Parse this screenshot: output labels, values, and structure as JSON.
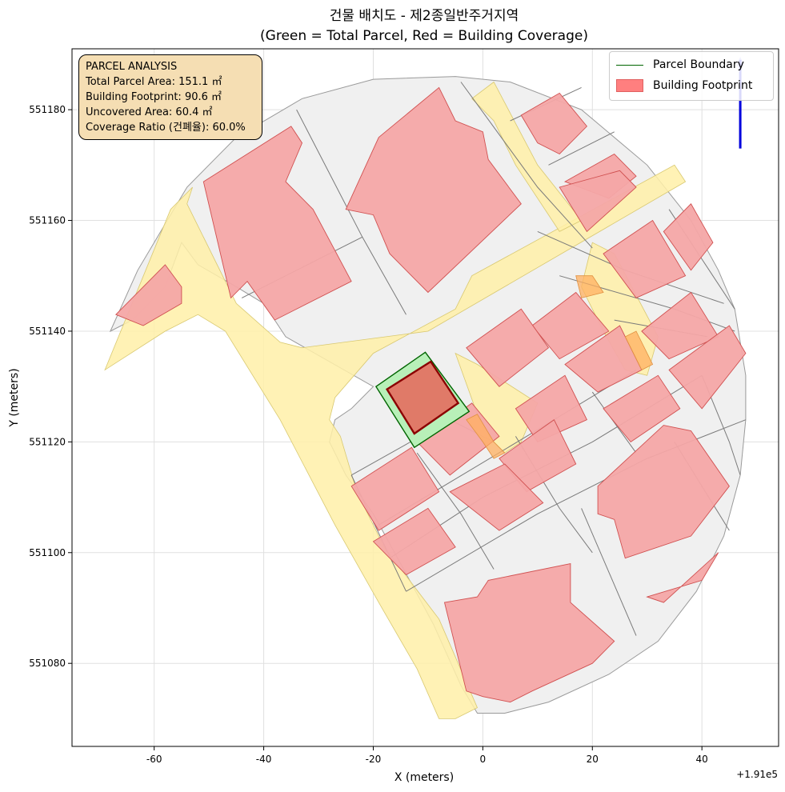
{
  "title": {
    "line1": "건물 배치도 - 제2종일반주거지역",
    "line2": "(Green = Total Parcel, Red = Building Coverage)"
  },
  "axes": {
    "xlabel": "X (meters)",
    "ylabel": "Y (meters)",
    "offset": "+1.91e5",
    "xlim": [
      -75,
      54
    ],
    "ylim": [
      551065,
      551191
    ],
    "xticks": [
      -60,
      -40,
      -20,
      0,
      20,
      40
    ],
    "xtick_labels": [
      "-60",
      "-40",
      "-20",
      "0",
      "20",
      "40"
    ],
    "yticks": [
      551080,
      551100,
      551120,
      551140,
      551160,
      551180
    ],
    "ytick_labels": [
      "551080",
      "551100",
      "551120",
      "551140",
      "551160",
      "551180"
    ],
    "grid": true
  },
  "info_box": {
    "title": "PARCEL ANALYSIS",
    "total_area": "Total Parcel Area: 151.1 ㎡",
    "footprint": "Building Footprint: 90.6 ㎡",
    "uncovered": "Uncovered Area: 60.4 ㎡",
    "coverage": "Coverage Ratio (건폐율): 60.0%"
  },
  "legend": {
    "placement": "top-right",
    "parcel_label": "Parcel Boundary",
    "building_label": "Building Footprint"
  },
  "colors": {
    "area_fill": "#f0f0f0",
    "road_fill": "#fff0a8",
    "building_fill": "#f4a6a6",
    "building_edge": "#d05050",
    "parcel_fill": "#b8f0b8",
    "parcel_edge": "#006400",
    "target_building_fill": "#e07a68",
    "target_building_edge": "#8b0000",
    "highlight_fill": "#ffb060",
    "north_arrow": "#0000dd"
  },
  "chart_data": {
    "type": "map",
    "coordinate_system": {
      "x_offset": 191000
    },
    "target_parcel": [
      [
        -19.5,
        551130
      ],
      [
        -10.5,
        551136.2
      ],
      [
        -2.5,
        551125.5
      ],
      [
        -12.5,
        551119
      ]
    ],
    "target_building": [
      [
        -17.5,
        551129.5
      ],
      [
        -9.5,
        551134.5
      ],
      [
        -4.5,
        551127
      ],
      [
        -12.5,
        551121.5
      ]
    ],
    "north_arrow": {
      "x": 47,
      "y_start": 551173,
      "y_end": 551189
    },
    "area_outline": [
      [
        -68,
        551140
      ],
      [
        -63,
        551151
      ],
      [
        -54,
        551166
      ],
      [
        -45,
        551175
      ],
      [
        -33,
        551182
      ],
      [
        -20,
        551185.5
      ],
      [
        -5,
        551186
      ],
      [
        5,
        551185
      ],
      [
        18,
        551180
      ],
      [
        30,
        551170
      ],
      [
        38,
        551160
      ],
      [
        43,
        551151
      ],
      [
        46,
        551144
      ],
      [
        47,
        551138
      ],
      [
        48,
        551132
      ],
      [
        48,
        551124
      ],
      [
        47,
        551114
      ],
      [
        44,
        551103
      ],
      [
        39,
        551093
      ],
      [
        32,
        551084
      ],
      [
        23,
        551078
      ],
      [
        12,
        551073
      ],
      [
        4,
        551071
      ],
      [
        -1,
        551071
      ],
      [
        -4,
        551076
      ],
      [
        -9,
        551087
      ],
      [
        -15,
        551098
      ],
      [
        -20,
        551107
      ],
      [
        -25,
        551114
      ],
      [
        -28,
        551120
      ],
      [
        -27,
        551124
      ],
      [
        -24,
        551126
      ],
      [
        -20,
        551130
      ],
      [
        -36,
        551139
      ],
      [
        -40,
        551145
      ],
      [
        -45,
        551148
      ],
      [
        -52,
        551152
      ],
      [
        -55,
        551156
      ],
      [
        -58,
        551148
      ],
      [
        -64,
        551142
      ],
      [
        -68,
        551140
      ]
    ],
    "roads": [
      [
        [
          -69,
          551133
        ],
        [
          -57,
          551162
        ],
        [
          -53,
          551166
        ],
        [
          -54,
          551163
        ],
        [
          -45,
          551145
        ],
        [
          -37,
          551138
        ],
        [
          -33,
          551137
        ],
        [
          -10,
          551140
        ],
        [
          37,
          551167
        ],
        [
          35,
          551170
        ],
        [
          -2,
          551150
        ],
        [
          -5,
          551144
        ],
        [
          -20,
          551136
        ],
        [
          -27,
          551128
        ],
        [
          -28,
          551124
        ],
        [
          -26,
          551121
        ],
        [
          -23,
          551111
        ],
        [
          -18,
          551101
        ],
        [
          -8,
          551088
        ],
        [
          -1,
          551072
        ],
        [
          -5,
          551070
        ],
        [
          -8,
          551070
        ],
        [
          -12,
          551079
        ],
        [
          -19,
          551091
        ],
        [
          -27,
          551105
        ],
        [
          -37,
          551124
        ],
        [
          -47,
          551140
        ],
        [
          -52,
          551143
        ],
        [
          -58,
          551140
        ],
        [
          -69,
          551133
        ]
      ],
      [
        [
          -2,
          551182
        ],
        [
          2,
          551185
        ],
        [
          10,
          551170
        ],
        [
          18,
          551160
        ],
        [
          14,
          551158
        ],
        [
          6,
          551170
        ],
        [
          2,
          551178
        ]
      ],
      [
        [
          -5,
          551136
        ],
        [
          -1,
          551134
        ],
        [
          10,
          551127
        ],
        [
          7,
          551120
        ],
        [
          4,
          551118
        ],
        [
          2,
          551120
        ],
        [
          -1,
          551125
        ]
      ],
      [
        [
          20,
          551156
        ],
        [
          24,
          551154
        ],
        [
          32,
          551139
        ],
        [
          30,
          551132
        ],
        [
          26,
          551133
        ],
        [
          22,
          551140
        ],
        [
          18,
          551148
        ]
      ]
    ],
    "parcel_lines": [
      [
        [
          -34,
          551180
        ],
        [
          -22,
          551157
        ],
        [
          -14,
          551143
        ]
      ],
      [
        [
          -22,
          551157
        ],
        [
          -44,
          551146
        ]
      ],
      [
        [
          -4,
          551185
        ],
        [
          10,
          551166
        ],
        [
          20,
          551155
        ]
      ],
      [
        [
          5,
          551178
        ],
        [
          18,
          551184
        ]
      ],
      [
        [
          12,
          551170
        ],
        [
          24,
          551176
        ]
      ],
      [
        [
          -24,
          551114
        ],
        [
          -6,
          551124
        ],
        [
          2,
          551120
        ]
      ],
      [
        [
          -24,
          551114
        ],
        [
          -14,
          551093
        ]
      ],
      [
        [
          -19,
          551105
        ],
        [
          8,
          551121
        ],
        [
          28,
          551133
        ]
      ],
      [
        [
          -17,
          551099
        ],
        [
          0,
          551110
        ],
        [
          20,
          551120
        ],
        [
          40,
          551132
        ]
      ],
      [
        [
          -14,
          551093
        ],
        [
          10,
          551107
        ],
        [
          30,
          551117
        ],
        [
          48,
          551124
        ]
      ],
      [
        [
          -12,
          551118
        ],
        [
          -4,
          551107
        ],
        [
          2,
          551097
        ]
      ],
      [
        [
          6,
          551121
        ],
        [
          14,
          551108
        ],
        [
          20,
          551100
        ]
      ],
      [
        [
          20,
          551129
        ],
        [
          28,
          551118
        ]
      ],
      [
        [
          40,
          551132
        ],
        [
          45,
          551120
        ],
        [
          47,
          551114
        ]
      ],
      [
        [
          18,
          551108
        ],
        [
          28,
          551085
        ]
      ],
      [
        [
          35,
          551120
        ],
        [
          45,
          551104
        ]
      ],
      [
        [
          10,
          551158
        ],
        [
          26,
          551151
        ],
        [
          44,
          551145
        ]
      ],
      [
        [
          14,
          551150
        ],
        [
          35,
          551144
        ],
        [
          46,
          551140
        ]
      ],
      [
        [
          24,
          551142
        ],
        [
          41,
          551139
        ]
      ],
      [
        [
          34,
          551162
        ],
        [
          40,
          551153
        ],
        [
          46,
          551144
        ]
      ]
    ],
    "buildings": [
      [
        [
          -51,
          551167
        ],
        [
          -35,
          551177
        ],
        [
          -33,
          551174
        ],
        [
          -36,
          551167
        ],
        [
          -31,
          551162
        ],
        [
          -24,
          551149
        ],
        [
          -38,
          551142
        ],
        [
          -43,
          551149
        ],
        [
          -46,
          551146
        ]
      ],
      [
        [
          -67,
          551143
        ],
        [
          -58,
          551152
        ],
        [
          -55,
          551148
        ],
        [
          -55,
          551145
        ],
        [
          -62,
          551141
        ]
      ],
      [
        [
          -19,
          551175
        ],
        [
          -8,
          551184
        ],
        [
          -5,
          551178
        ],
        [
          0,
          551176
        ],
        [
          1,
          551171
        ],
        [
          7,
          551163
        ],
        [
          -10,
          551147
        ],
        [
          -12,
          551149
        ],
        [
          -17,
          551154
        ],
        [
          -20,
          551161
        ],
        [
          -25,
          551162
        ]
      ],
      [
        [
          7,
          551179
        ],
        [
          14,
          551183
        ],
        [
          19,
          551177
        ],
        [
          14,
          551172
        ],
        [
          10,
          551174
        ]
      ],
      [
        [
          15,
          551167
        ],
        [
          24,
          551172
        ],
        [
          28,
          551168
        ],
        [
          23,
          551164
        ]
      ],
      [
        [
          14,
          551166
        ],
        [
          19,
          551158
        ],
        [
          28,
          551166
        ],
        [
          25,
          551169
        ]
      ],
      [
        [
          22,
          551154
        ],
        [
          31,
          551160
        ],
        [
          37,
          551150
        ],
        [
          28,
          551146
        ]
      ],
      [
        [
          33,
          551158
        ],
        [
          38,
          551163
        ],
        [
          42,
          551156
        ],
        [
          38,
          551151
        ]
      ],
      [
        [
          9,
          551141
        ],
        [
          17,
          551147
        ],
        [
          23,
          551140
        ],
        [
          14,
          551135
        ]
      ],
      [
        [
          -3,
          551137
        ],
        [
          7,
          551144
        ],
        [
          12,
          551137
        ],
        [
          3,
          551130
        ]
      ],
      [
        [
          6,
          551126
        ],
        [
          15,
          551132
        ],
        [
          19,
          551124
        ],
        [
          10,
          551120
        ]
      ],
      [
        [
          15,
          551134
        ],
        [
          25,
          551141
        ],
        [
          29,
          551133
        ],
        [
          21,
          551129
        ]
      ],
      [
        [
          29,
          551140
        ],
        [
          38,
          551147
        ],
        [
          43,
          551139
        ],
        [
          34,
          551135
        ]
      ],
      [
        [
          34,
          551133
        ],
        [
          45,
          551141
        ],
        [
          48,
          551136
        ],
        [
          40,
          551126
        ]
      ],
      [
        [
          22,
          551126
        ],
        [
          32,
          551132
        ],
        [
          36,
          551126
        ],
        [
          27,
          551120
        ]
      ],
      [
        [
          -12,
          551120
        ],
        [
          -2,
          551127
        ],
        [
          3,
          551121
        ],
        [
          -6,
          551114
        ]
      ],
      [
        [
          -24,
          551112
        ],
        [
          -13,
          551119
        ],
        [
          -8,
          551111
        ],
        [
          -19,
          551104
        ]
      ],
      [
        [
          -20,
          551102
        ],
        [
          -10,
          551108
        ],
        [
          -5,
          551101
        ],
        [
          -14,
          551096
        ]
      ],
      [
        [
          3,
          551117
        ],
        [
          13,
          551124
        ],
        [
          17,
          551116
        ],
        [
          8,
          551111
        ]
      ],
      [
        [
          -6,
          551111
        ],
        [
          4,
          551116
        ],
        [
          11,
          551109
        ],
        [
          3,
          551104
        ]
      ],
      [
        [
          21,
          551112
        ],
        [
          33,
          551123
        ],
        [
          38,
          551122
        ],
        [
          45,
          551112
        ],
        [
          38,
          551103
        ],
        [
          26,
          551099
        ],
        [
          24,
          551106
        ],
        [
          21,
          551107
        ]
      ],
      [
        [
          -7,
          551091
        ],
        [
          -1,
          551092
        ],
        [
          1,
          551095
        ],
        [
          16,
          551098
        ],
        [
          16,
          551091
        ],
        [
          24,
          551084
        ],
        [
          20,
          551080
        ],
        [
          9,
          551075
        ],
        [
          5,
          551073
        ],
        [
          0,
          551074
        ],
        [
          -3,
          551075
        ]
      ],
      [
        [
          30,
          551092
        ],
        [
          40,
          551095
        ],
        [
          43,
          551100
        ],
        [
          33,
          551091
        ]
      ]
    ],
    "highlights": [
      [
        [
          -1,
          551125
        ],
        [
          2,
          551120
        ],
        [
          4,
          551118
        ],
        [
          2,
          551117
        ],
        [
          0,
          551120
        ],
        [
          -3,
          551124
        ]
      ],
      [
        [
          18,
          551146
        ],
        [
          22,
          551147
        ],
        [
          20,
          551150
        ],
        [
          17,
          551150
        ]
      ],
      [
        [
          26,
          551139
        ],
        [
          29,
          551133
        ],
        [
          31,
          551134
        ],
        [
          28,
          551140
        ]
      ]
    ]
  }
}
